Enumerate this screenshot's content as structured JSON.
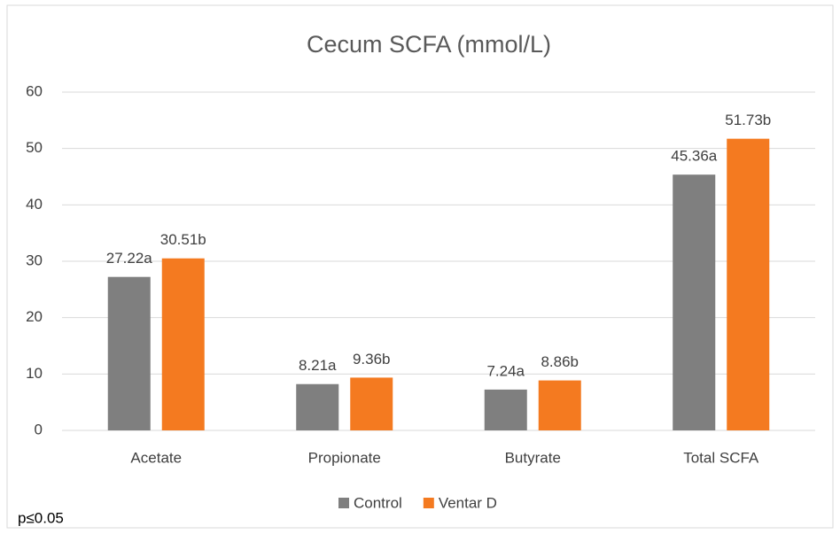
{
  "chart_data": {
    "type": "bar",
    "title": "Cecum SCFA (mmol/L)",
    "categories": [
      "Acetate",
      "Propionate",
      "Butyrate",
      "Total SCFA"
    ],
    "series": [
      {
        "name": "Control",
        "color": "#7f7f7f",
        "values": [
          27.22,
          8.21,
          7.24,
          45.36
        ],
        "value_labels": [
          "27.22a",
          "8.21a",
          "7.24a",
          "45.36a"
        ]
      },
      {
        "name": "Ventar D",
        "color": "#f47a20",
        "values": [
          30.51,
          9.36,
          8.86,
          51.73
        ],
        "value_labels": [
          "30.51b",
          "9.36b",
          "8.86b",
          "51.73b"
        ]
      }
    ],
    "ylim": [
      0,
      60
    ],
    "yticks": [
      0,
      10,
      20,
      30,
      40,
      50,
      60
    ],
    "grid": true,
    "legend": "bottom",
    "annotation": "p≤0.05"
  }
}
